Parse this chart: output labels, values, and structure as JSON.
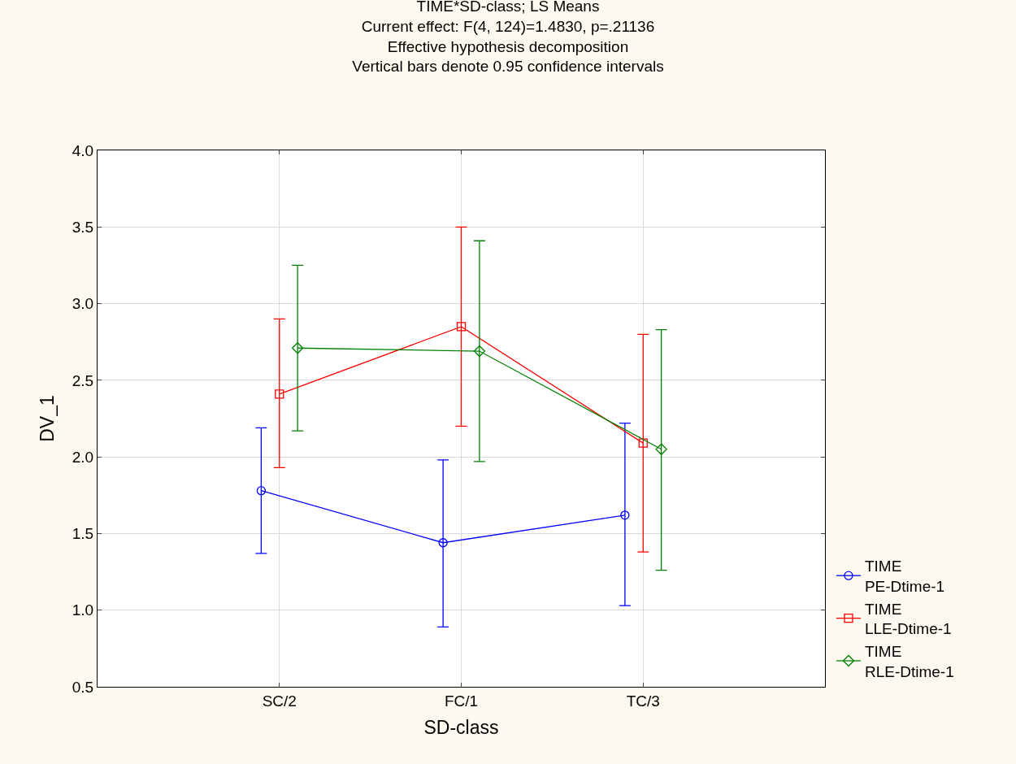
{
  "chart_data": {
    "type": "line",
    "title": "TIME*SD-class; LS Means",
    "subtitle": "Current effect: F(4, 124)=1.4830, p=.21136\nEffective hypothesis decomposition\nVertical bars denote 0.95 confidence intervals",
    "xlabel": "SD-class",
    "ylabel": "DV_1",
    "categories": [
      "SC/2",
      "FC/1",
      "TC/3"
    ],
    "series": [
      {
        "name": "TIME\nPE-Dtime-1",
        "color": "#0000ff",
        "marker": "circle",
        "values": [
          1.78,
          1.44,
          1.62
        ],
        "errors": [
          [
            1.37,
            2.19
          ],
          [
            0.89,
            1.98
          ],
          [
            1.03,
            2.22
          ]
        ]
      },
      {
        "name": "TIME\nLLE-Dtime-1",
        "color": "#ff0000",
        "marker": "square",
        "values": [
          2.41,
          2.85,
          2.09
        ],
        "errors": [
          [
            1.93,
            2.9
          ],
          [
            2.2,
            3.5
          ],
          [
            1.38,
            2.8
          ]
        ]
      },
      {
        "name": "TIME\nRLE-Dtime-1",
        "color": "#008000",
        "marker": "diamond",
        "values": [
          2.71,
          2.69,
          2.05
        ],
        "errors": [
          [
            2.17,
            3.25
          ],
          [
            1.97,
            3.41
          ],
          [
            1.26,
            2.83
          ]
        ]
      }
    ],
    "ylim": [
      0.5,
      4.0
    ],
    "yticks": [
      {
        "value": 0.5,
        "label": "0.5"
      },
      {
        "value": 1.0,
        "label": "1.0"
      },
      {
        "value": 1.5,
        "label": "1.5"
      },
      {
        "value": 2.0,
        "label": "2.0"
      },
      {
        "value": 2.5,
        "label": "2.5"
      },
      {
        "value": 3.0,
        "label": "3.0"
      },
      {
        "value": 3.5,
        "label": "3.5"
      },
      {
        "value": 4.0,
        "label": "4.0"
      }
    ],
    "grid": true,
    "legend": "bottom right",
    "line_style": "solid"
  }
}
